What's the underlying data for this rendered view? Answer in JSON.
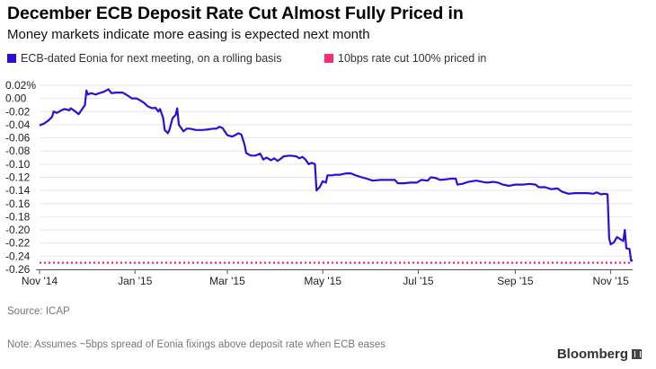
{
  "title": "December ECB Deposit Rate Cut Almost Fully Priced in",
  "subtitle": "Money markets indicate more easing is expected next month",
  "source": "Source: ICAP",
  "note": "Note: Assumes ~5bps spread of Eonia fixings above deposit rate when ECB eases",
  "brand": "Bloomberg",
  "chart_data": {
    "type": "line",
    "title": "December ECB Deposit Rate Cut Almost Fully Priced in",
    "subtitle": "Money markets indicate more easing is expected next month",
    "xlabel": "",
    "ylabel": "",
    "ylim": [
      -0.26,
      0.02
    ],
    "grid": true,
    "legend_position": "top",
    "y_ticks": [
      {
        "value": 0.02,
        "label": "0.02%"
      },
      {
        "value": 0.0,
        "label": "0.00"
      },
      {
        "value": -0.02,
        "label": "-0.02"
      },
      {
        "value": -0.04,
        "label": "-0.04"
      },
      {
        "value": -0.06,
        "label": "-0.06"
      },
      {
        "value": -0.08,
        "label": "-0.08"
      },
      {
        "value": -0.1,
        "label": "-0.10"
      },
      {
        "value": -0.12,
        "label": "-0.12"
      },
      {
        "value": -0.14,
        "label": "-0.14"
      },
      {
        "value": -0.16,
        "label": "-0.16"
      },
      {
        "value": -0.18,
        "label": "-0.18"
      },
      {
        "value": -0.2,
        "label": "-0.20"
      },
      {
        "value": -0.22,
        "label": "-0.22"
      },
      {
        "value": -0.24,
        "label": "-0.24"
      },
      {
        "value": -0.26,
        "label": "-0.26"
      }
    ],
    "x_ticks": [
      {
        "date": "2014-11-01",
        "label": "Nov '14"
      },
      {
        "date": "2015-01-01",
        "label": "Jan '15"
      },
      {
        "date": "2015-03-01",
        "label": "Mar '15"
      },
      {
        "date": "2015-05-01",
        "label": "May '15"
      },
      {
        "date": "2015-07-01",
        "label": "Jul '15"
      },
      {
        "date": "2015-09-01",
        "label": "Sep '15"
      },
      {
        "date": "2015-11-01",
        "label": "Nov '15"
      }
    ],
    "xlim": [
      "2014-11-01",
      "2015-11-15"
    ],
    "series": [
      {
        "name": "ECB-dated Eonia for next meeting, on a rolling basis",
        "color": "#2b0fd8",
        "style": "solid",
        "points": [
          [
            "2014-11-01",
            -0.041
          ],
          [
            "2014-11-04",
            -0.038
          ],
          [
            "2014-11-07",
            -0.033
          ],
          [
            "2014-11-09",
            -0.028
          ],
          [
            "2014-11-10",
            -0.02
          ],
          [
            "2014-11-12",
            -0.022
          ],
          [
            "2014-11-15",
            -0.018
          ],
          [
            "2014-11-17",
            -0.016
          ],
          [
            "2014-11-20",
            -0.018
          ],
          [
            "2014-11-21",
            -0.015
          ],
          [
            "2014-11-24",
            -0.02
          ],
          [
            "2014-11-26",
            -0.024
          ],
          [
            "2014-11-28",
            -0.017
          ],
          [
            "2014-11-30",
            -0.01
          ],
          [
            "2014-12-01",
            0.012
          ],
          [
            "2014-12-02",
            0.006
          ],
          [
            "2014-12-04",
            0.008
          ],
          [
            "2014-12-07",
            0.006
          ],
          [
            "2014-12-09",
            0.008
          ],
          [
            "2014-12-12",
            0.01
          ],
          [
            "2014-12-15",
            0.014
          ],
          [
            "2014-12-17",
            0.008
          ],
          [
            "2014-12-20",
            0.009
          ],
          [
            "2014-12-24",
            0.009
          ],
          [
            "2014-12-27",
            0.005
          ],
          [
            "2014-12-30",
            0.0
          ],
          [
            "2015-01-02",
            0.0
          ],
          [
            "2015-01-05",
            -0.004
          ],
          [
            "2015-01-07",
            -0.007
          ],
          [
            "2015-01-09",
            -0.012
          ],
          [
            "2015-01-12",
            -0.015
          ],
          [
            "2015-01-14",
            -0.014
          ],
          [
            "2015-01-16",
            -0.02
          ],
          [
            "2015-01-17",
            -0.016
          ],
          [
            "2015-01-19",
            -0.03
          ],
          [
            "2015-01-20",
            -0.048
          ],
          [
            "2015-01-22",
            -0.053
          ],
          [
            "2015-01-23",
            -0.048
          ],
          [
            "2015-01-25",
            -0.03
          ],
          [
            "2015-01-27",
            -0.025
          ],
          [
            "2015-01-28",
            -0.015
          ],
          [
            "2015-01-29",
            -0.04
          ],
          [
            "2015-02-01",
            -0.05
          ],
          [
            "2015-02-03",
            -0.046
          ],
          [
            "2015-02-05",
            -0.046
          ],
          [
            "2015-02-09",
            -0.048
          ],
          [
            "2015-02-13",
            -0.048
          ],
          [
            "2015-02-17",
            -0.047
          ],
          [
            "2015-02-20",
            -0.046
          ],
          [
            "2015-02-22",
            -0.046
          ],
          [
            "2015-02-24",
            -0.043
          ],
          [
            "2015-02-26",
            -0.045
          ],
          [
            "2015-03-01",
            -0.056
          ],
          [
            "2015-03-04",
            -0.058
          ],
          [
            "2015-03-06",
            -0.056
          ],
          [
            "2015-03-08",
            -0.053
          ],
          [
            "2015-03-10",
            -0.055
          ],
          [
            "2015-03-12",
            -0.07
          ],
          [
            "2015-03-13",
            -0.083
          ],
          [
            "2015-03-16",
            -0.087
          ],
          [
            "2015-03-19",
            -0.087
          ],
          [
            "2015-03-22",
            -0.084
          ],
          [
            "2015-03-24",
            -0.093
          ],
          [
            "2015-03-26",
            -0.09
          ],
          [
            "2015-03-29",
            -0.094
          ],
          [
            "2015-03-31",
            -0.091
          ],
          [
            "2015-04-02",
            -0.095
          ],
          [
            "2015-04-04",
            -0.092
          ],
          [
            "2015-04-06",
            -0.088
          ],
          [
            "2015-04-10",
            -0.087
          ],
          [
            "2015-04-14",
            -0.088
          ],
          [
            "2015-04-16",
            -0.091
          ],
          [
            "2015-04-18",
            -0.089
          ],
          [
            "2015-04-20",
            -0.093
          ],
          [
            "2015-04-22",
            -0.1
          ],
          [
            "2015-04-24",
            -0.098
          ],
          [
            "2015-04-26",
            -0.1
          ],
          [
            "2015-04-27",
            -0.14
          ],
          [
            "2015-04-29",
            -0.135
          ],
          [
            "2015-05-01",
            -0.126
          ],
          [
            "2015-05-03",
            -0.128
          ],
          [
            "2015-05-04",
            -0.117
          ],
          [
            "2015-05-07",
            -0.117
          ],
          [
            "2015-05-09",
            -0.116
          ],
          [
            "2015-05-12",
            -0.116
          ],
          [
            "2015-05-16",
            -0.114
          ],
          [
            "2015-05-19",
            -0.114
          ],
          [
            "2015-05-22",
            -0.117
          ],
          [
            "2015-05-26",
            -0.12
          ],
          [
            "2015-05-29",
            -0.122
          ],
          [
            "2015-06-02",
            -0.125
          ],
          [
            "2015-06-07",
            -0.124
          ],
          [
            "2015-06-12",
            -0.124
          ],
          [
            "2015-06-16",
            -0.124
          ],
          [
            "2015-06-18",
            -0.129
          ],
          [
            "2015-06-22",
            -0.129
          ],
          [
            "2015-06-26",
            -0.128
          ],
          [
            "2015-06-30",
            -0.128
          ],
          [
            "2015-07-03",
            -0.124
          ],
          [
            "2015-07-07",
            -0.125
          ],
          [
            "2015-07-09",
            -0.12
          ],
          [
            "2015-07-12",
            -0.121
          ],
          [
            "2015-07-15",
            -0.124
          ],
          [
            "2015-07-19",
            -0.123
          ],
          [
            "2015-07-22",
            -0.122
          ],
          [
            "2015-07-25",
            -0.122
          ],
          [
            "2015-07-26",
            -0.131
          ],
          [
            "2015-07-29",
            -0.13
          ],
          [
            "2015-08-02",
            -0.127
          ],
          [
            "2015-08-07",
            -0.125
          ],
          [
            "2015-08-11",
            -0.127
          ],
          [
            "2015-08-14",
            -0.128
          ],
          [
            "2015-08-18",
            -0.127
          ],
          [
            "2015-08-21",
            -0.128
          ],
          [
            "2015-08-24",
            -0.131
          ],
          [
            "2015-08-28",
            -0.133
          ],
          [
            "2015-09-01",
            -0.131
          ],
          [
            "2015-09-06",
            -0.131
          ],
          [
            "2015-09-10",
            -0.13
          ],
          [
            "2015-09-14",
            -0.131
          ],
          [
            "2015-09-16",
            -0.135
          ],
          [
            "2015-09-20",
            -0.135
          ],
          [
            "2015-09-24",
            -0.138
          ],
          [
            "2015-09-28",
            -0.137
          ],
          [
            "2015-10-01",
            -0.142
          ],
          [
            "2015-10-05",
            -0.145
          ],
          [
            "2015-10-09",
            -0.144
          ],
          [
            "2015-10-13",
            -0.144
          ],
          [
            "2015-10-17",
            -0.144
          ],
          [
            "2015-10-21",
            -0.145
          ],
          [
            "2015-10-23",
            -0.143
          ],
          [
            "2015-10-26",
            -0.146
          ],
          [
            "2015-10-28",
            -0.145
          ],
          [
            "2015-10-30",
            -0.146
          ],
          [
            "2015-10-31",
            -0.213
          ],
          [
            "2015-11-01",
            -0.222
          ],
          [
            "2015-11-03",
            -0.219
          ],
          [
            "2015-11-05",
            -0.211
          ],
          [
            "2015-11-07",
            -0.214
          ],
          [
            "2015-11-09",
            -0.217
          ],
          [
            "2015-11-10",
            -0.2
          ],
          [
            "2015-11-11",
            -0.228
          ],
          [
            "2015-11-13",
            -0.229
          ],
          [
            "2015-11-14",
            -0.247
          ],
          [
            "2015-11-15",
            -0.246
          ]
        ]
      },
      {
        "name": "10bps rate cut 100% priced in",
        "color": "#ff2a78",
        "style": "dotted",
        "points": [
          [
            "2014-11-01",
            -0.25
          ],
          [
            "2015-11-15",
            -0.25
          ]
        ]
      }
    ]
  }
}
